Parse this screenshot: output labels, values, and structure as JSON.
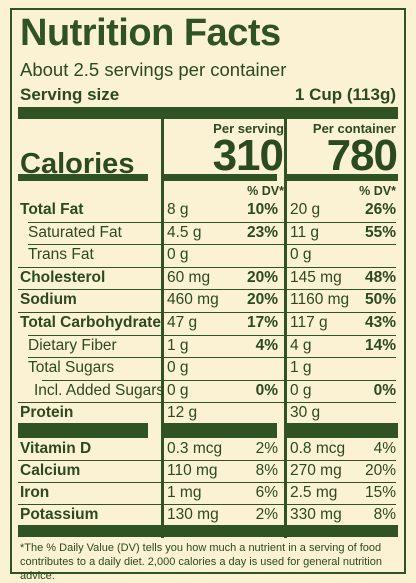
{
  "title": "Nutrition Facts",
  "servings": "About 2.5 servings per container",
  "serving_size_label": "Serving size",
  "serving_size_value": "1 Cup (113g)",
  "per_serving_label": "Per serving",
  "per_container_label": "Per container",
  "calories_label": "Calories",
  "calories_per_serving": "310",
  "calories_per_container": "780",
  "dv_header": "% DV*",
  "nutrients": [
    {
      "name": "Total Fat",
      "bold": true,
      "indent": 0,
      "s_amt": "8 g",
      "s_dv": "10%",
      "c_amt": "20 g",
      "c_dv": "26%"
    },
    {
      "name": "Saturated Fat",
      "bold": false,
      "indent": 1,
      "s_amt": "4.5 g",
      "s_dv": "23%",
      "c_amt": "11 g",
      "c_dv": "55%"
    },
    {
      "name": "Trans Fat",
      "bold": false,
      "indent": 1,
      "s_amt": "0 g",
      "s_dv": "",
      "c_amt": "0 g",
      "c_dv": ""
    },
    {
      "name": "Cholesterol",
      "bold": true,
      "indent": 0,
      "s_amt": "60 mg",
      "s_dv": "20%",
      "c_amt": "145 mg",
      "c_dv": "48%"
    },
    {
      "name": "Sodium",
      "bold": true,
      "indent": 0,
      "s_amt": "460 mg",
      "s_dv": "20%",
      "c_amt": "1160 mg",
      "c_dv": "50%"
    },
    {
      "name": "Total Carbohydrate",
      "bold": true,
      "indent": 0,
      "s_amt": "47 g",
      "s_dv": "17%",
      "c_amt": "117 g",
      "c_dv": "43%"
    },
    {
      "name": "Dietary Fiber",
      "bold": false,
      "indent": 1,
      "s_amt": "1 g",
      "s_dv": "4%",
      "c_amt": "4 g",
      "c_dv": "14%"
    },
    {
      "name": "Total Sugars",
      "bold": false,
      "indent": 1,
      "s_amt": "0 g",
      "s_dv": "",
      "c_amt": "1 g",
      "c_dv": ""
    },
    {
      "name": "Incl. Added Sugars",
      "bold": false,
      "indent": 2,
      "s_amt": "0 g",
      "s_dv": "0%",
      "c_amt": "0 g",
      "c_dv": "0%"
    },
    {
      "name": "Protein",
      "bold": true,
      "indent": 0,
      "s_amt": "12 g",
      "s_dv": "",
      "c_amt": "30 g",
      "c_dv": ""
    }
  ],
  "vitamins": [
    {
      "name": "Vitamin D",
      "s_amt": "0.3 mcg",
      "s_dv": "2%",
      "c_amt": "0.8 mcg",
      "c_dv": "4%"
    },
    {
      "name": "Calcium",
      "s_amt": "110 mg",
      "s_dv": "8%",
      "c_amt": "270 mg",
      "c_dv": "20%"
    },
    {
      "name": "Iron",
      "s_amt": "1 mg",
      "s_dv": "6%",
      "c_amt": "2.5 mg",
      "c_dv": "15%"
    },
    {
      "name": "Potassium",
      "s_amt": "130 mg",
      "s_dv": "2%",
      "c_amt": "330 mg",
      "c_dv": "8%"
    }
  ],
  "footnote": "*The % Daily Value (DV) tells you how much a nutrient in a serving of food contributes to a daily diet. 2,000 calories a day is used for general nutrition advice.",
  "colors": {
    "ink": "#2f5322",
    "background": "#fbf1d3"
  }
}
